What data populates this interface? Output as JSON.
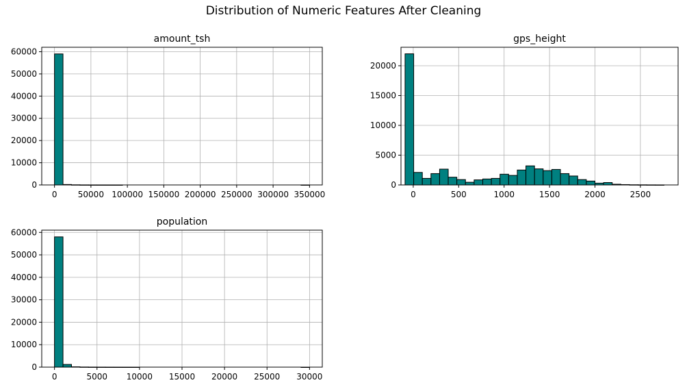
{
  "figure": {
    "suptitle": "Distribution of Numeric Features After Cleaning"
  },
  "colors": {
    "bar_fill": "#008080",
    "bar_edge": "#000000",
    "grid": "#b0b0b0",
    "axis": "#000000"
  },
  "chart_data": [
    {
      "type": "bar",
      "subtype": "histogram",
      "title": "amount_tsh",
      "grid": true,
      "xlim": [
        -17500,
        367500
      ],
      "ylim": [
        0,
        62000
      ],
      "xticks": [
        0,
        50000,
        100000,
        150000,
        200000,
        250000,
        300000,
        350000
      ],
      "xtick_labels": [
        "0",
        "50000",
        "100000",
        "150000",
        "200000",
        "250000",
        "300000",
        "350000"
      ],
      "yticks": [
        0,
        10000,
        20000,
        30000,
        40000,
        50000,
        60000
      ],
      "ytick_labels": [
        "0",
        "10000",
        "20000",
        "30000",
        "40000",
        "50000",
        "60000"
      ],
      "bin_start": 0,
      "bin_width": 11667,
      "values": [
        59000,
        200,
        60,
        20,
        10,
        5,
        3,
        2,
        0,
        0,
        0,
        0,
        0,
        0,
        0,
        0,
        0,
        0,
        0,
        0,
        0,
        0,
        0,
        0,
        0,
        0,
        0,
        0,
        0,
        1
      ]
    },
    {
      "type": "bar",
      "subtype": "histogram",
      "title": "gps_height",
      "grid": true,
      "xlim": [
        -135,
        2915
      ],
      "ylim": [
        0,
        23100
      ],
      "xticks": [
        0,
        500,
        1000,
        1500,
        2000,
        2500
      ],
      "xtick_labels": [
        "0",
        "500",
        "1000",
        "1500",
        "2000",
        "2500"
      ],
      "yticks": [
        0,
        5000,
        10000,
        15000,
        20000
      ],
      "ytick_labels": [
        "0",
        "5000",
        "10000",
        "15000",
        "20000"
      ],
      "bin_start": -90,
      "bin_width": 95,
      "values": [
        22000,
        2100,
        1100,
        1900,
        2650,
        1300,
        900,
        450,
        850,
        1000,
        1100,
        1800,
        1600,
        2500,
        3200,
        2700,
        2400,
        2600,
        1900,
        1500,
        900,
        650,
        300,
        400,
        120,
        60,
        30,
        20,
        10,
        5
      ]
    },
    {
      "type": "bar",
      "subtype": "histogram",
      "title": "population",
      "grid": true,
      "xlim": [
        -1500,
        31500
      ],
      "ylim": [
        0,
        61000
      ],
      "xticks": [
        0,
        5000,
        10000,
        15000,
        20000,
        25000,
        30000
      ],
      "xtick_labels": [
        "0",
        "5000",
        "10000",
        "15000",
        "20000",
        "25000",
        "30000"
      ],
      "yticks": [
        0,
        10000,
        20000,
        30000,
        40000,
        50000,
        60000
      ],
      "ytick_labels": [
        "0",
        "10000",
        "20000",
        "30000",
        "40000",
        "50000",
        "60000"
      ],
      "bin_start": 0,
      "bin_width": 1000,
      "values": [
        58000,
        1200,
        150,
        60,
        30,
        20,
        10,
        5,
        3,
        2,
        0,
        0,
        0,
        0,
        0,
        0,
        0,
        0,
        0,
        0,
        0,
        0,
        0,
        0,
        0,
        0,
        0,
        0,
        0,
        1
      ]
    }
  ]
}
